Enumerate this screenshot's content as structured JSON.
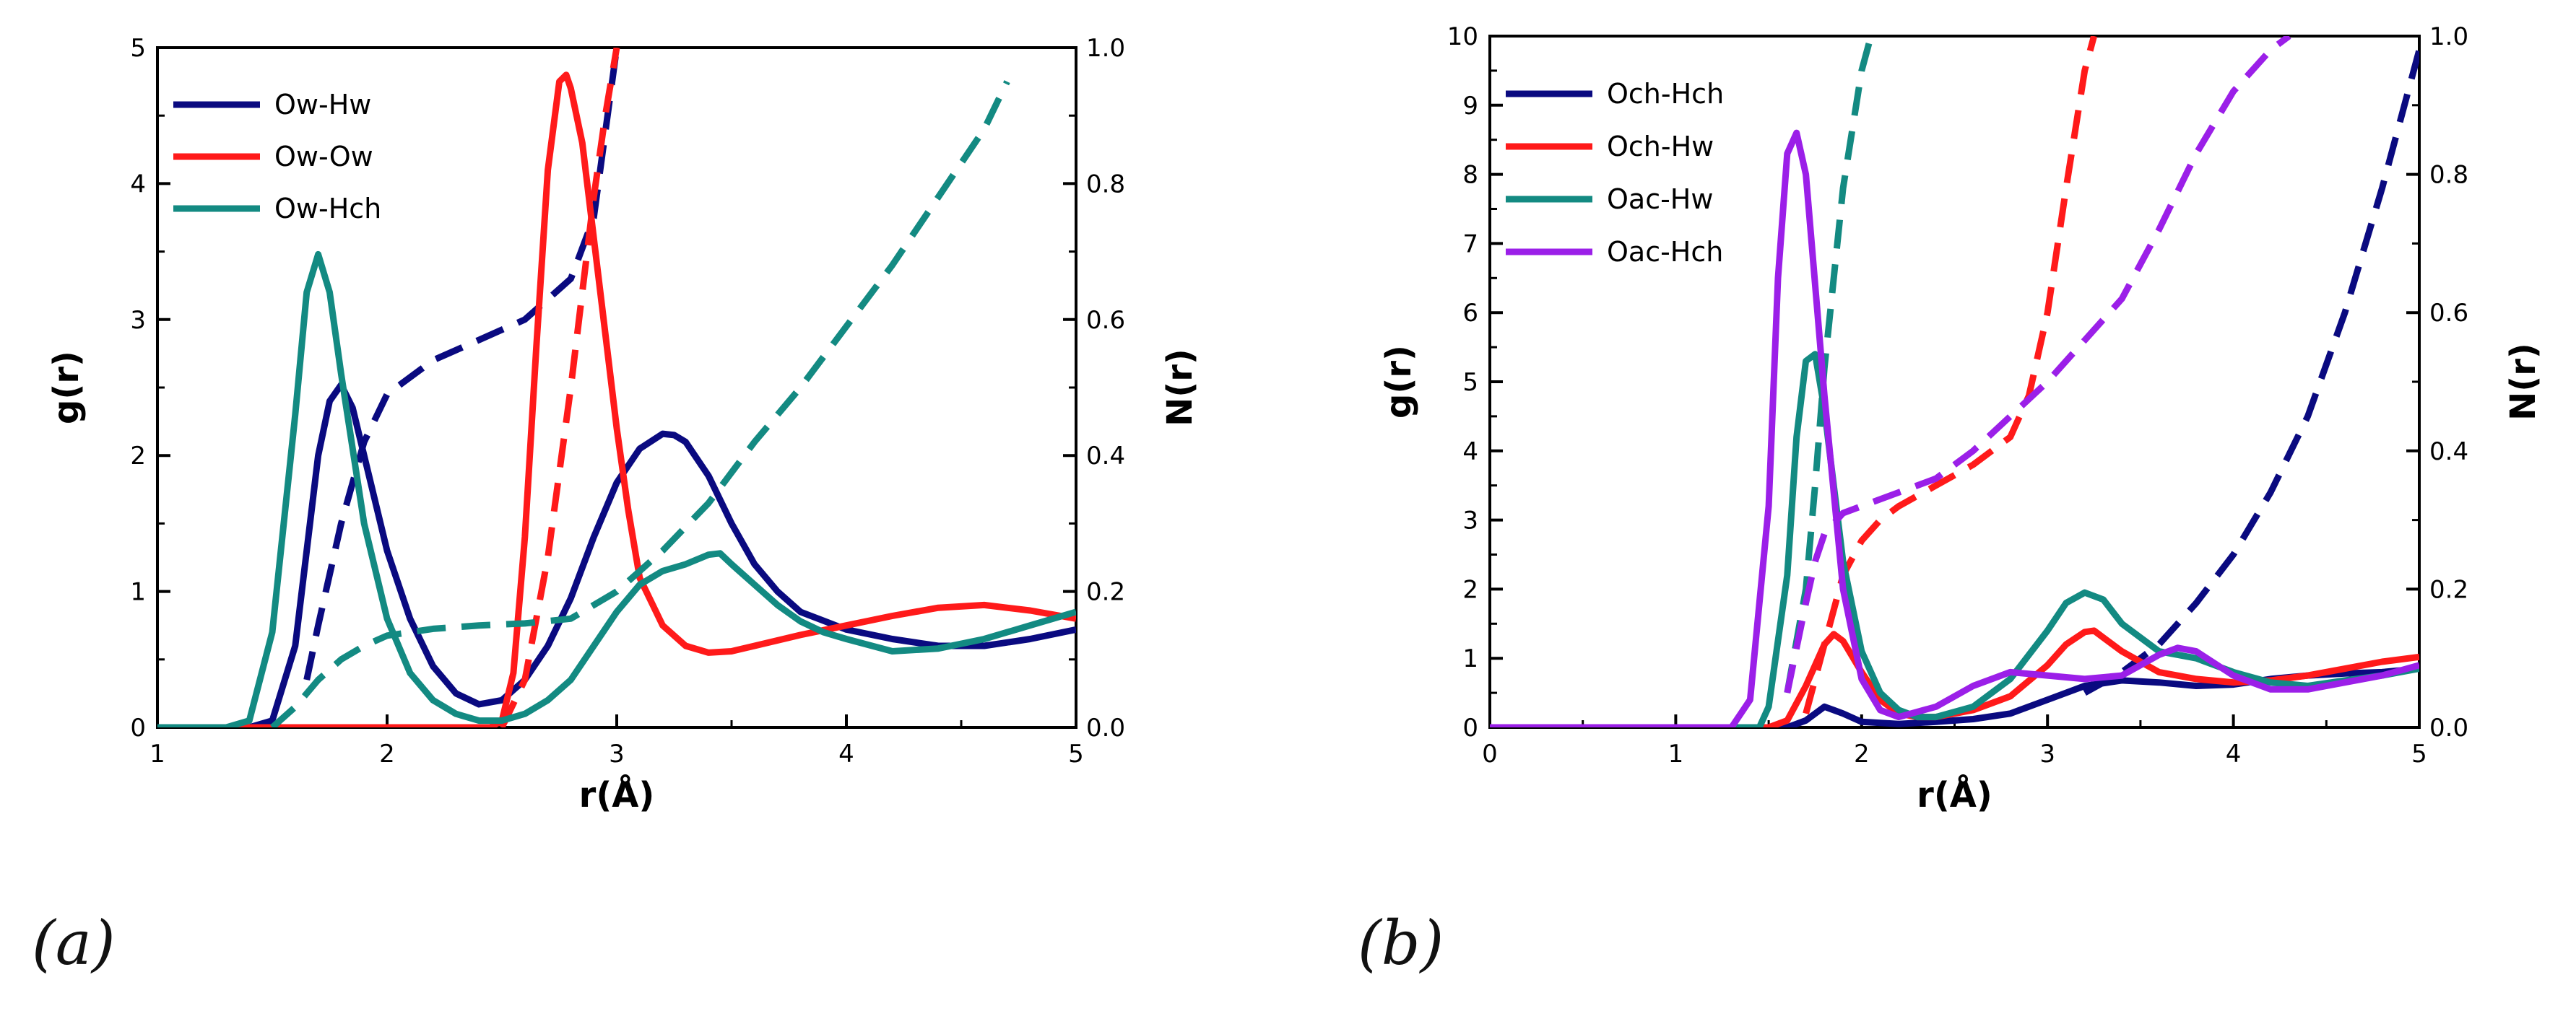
{
  "panel_labels": {
    "a": "(a)",
    "b": "(b)"
  },
  "chart_data": [
    {
      "type": "line",
      "panel": "(a)",
      "xlabel": "r(Å)",
      "ylabel": "g(r)",
      "y2label": "N(r)",
      "xlim": [
        1,
        5
      ],
      "ylim": [
        0,
        5
      ],
      "y2lim": [
        0,
        1.0
      ],
      "xticks": [
        "1",
        "2",
        "3",
        "4",
        "5"
      ],
      "yticks": [
        "0",
        "1",
        "2",
        "3",
        "4",
        "5"
      ],
      "y2ticks": [
        "0.0",
        "0.2",
        "0.4",
        "0.6",
        "0.8",
        "1.0"
      ],
      "grid": false,
      "legend_position": "top-left",
      "series": [
        {
          "name": "Ow-Hw",
          "color": "#0a0a80",
          "axis": "left",
          "style": "solid",
          "x": [
            1.0,
            1.4,
            1.5,
            1.6,
            1.65,
            1.7,
            1.75,
            1.8,
            1.85,
            1.9,
            2.0,
            2.1,
            2.2,
            2.3,
            2.4,
            2.5,
            2.6,
            2.7,
            2.8,
            2.9,
            3.0,
            3.1,
            3.2,
            3.25,
            3.3,
            3.4,
            3.5,
            3.6,
            3.7,
            3.8,
            4.0,
            4.2,
            4.4,
            4.6,
            4.8,
            5.0
          ],
          "y": [
            0,
            0,
            0.05,
            0.6,
            1.3,
            2.0,
            2.4,
            2.52,
            2.35,
            2.0,
            1.3,
            0.8,
            0.45,
            0.25,
            0.17,
            0.2,
            0.35,
            0.6,
            0.95,
            1.4,
            1.8,
            2.05,
            2.16,
            2.15,
            2.1,
            1.85,
            1.5,
            1.2,
            1.0,
            0.85,
            0.72,
            0.65,
            0.6,
            0.6,
            0.65,
            0.72
          ]
        },
        {
          "name": "",
          "color": "#0a0a80",
          "axis": "right",
          "style": "dashed",
          "x": [
            1.65,
            1.7,
            1.8,
            1.9,
            2.0,
            2.2,
            2.4,
            2.6,
            2.8,
            2.9,
            3.0
          ],
          "y": [
            0.07,
            0.15,
            0.3,
            0.42,
            0.49,
            0.54,
            0.57,
            0.6,
            0.66,
            0.75,
            1.0
          ]
        },
        {
          "name": "Ow-Ow",
          "color": "#ff1a1a",
          "axis": "left",
          "style": "solid",
          "x": [
            1.0,
            2.45,
            2.5,
            2.55,
            2.6,
            2.65,
            2.7,
            2.75,
            2.78,
            2.8,
            2.85,
            2.9,
            2.95,
            3.0,
            3.05,
            3.1,
            3.2,
            3.3,
            3.4,
            3.5,
            3.6,
            3.8,
            4.0,
            4.2,
            4.4,
            4.6,
            4.8,
            5.0
          ],
          "y": [
            0,
            0,
            0.05,
            0.4,
            1.4,
            2.8,
            4.1,
            4.75,
            4.8,
            4.7,
            4.3,
            3.6,
            2.9,
            2.2,
            1.6,
            1.1,
            0.75,
            0.6,
            0.55,
            0.56,
            0.6,
            0.68,
            0.75,
            0.82,
            0.88,
            0.9,
            0.86,
            0.8
          ]
        },
        {
          "name": "",
          "color": "#ff1a1a",
          "axis": "right",
          "style": "dashed",
          "x": [
            2.5,
            2.6,
            2.7,
            2.8,
            2.9,
            2.95,
            3.0
          ],
          "y": [
            0.0,
            0.07,
            0.25,
            0.5,
            0.78,
            0.9,
            1.0
          ]
        },
        {
          "name": "Ow-Hch",
          "color": "#138a82",
          "axis": "left",
          "style": "solid",
          "x": [
            1.0,
            1.3,
            1.4,
            1.5,
            1.6,
            1.65,
            1.7,
            1.75,
            1.8,
            1.9,
            2.0,
            2.1,
            2.2,
            2.3,
            2.4,
            2.5,
            2.6,
            2.7,
            2.8,
            2.9,
            3.0,
            3.1,
            3.2,
            3.3,
            3.4,
            3.45,
            3.5,
            3.6,
            3.7,
            3.8,
            3.9,
            4.0,
            4.2,
            4.4,
            4.6,
            4.8,
            5.0
          ],
          "y": [
            0,
            0,
            0.05,
            0.7,
            2.3,
            3.2,
            3.48,
            3.2,
            2.6,
            1.5,
            0.8,
            0.4,
            0.2,
            0.1,
            0.05,
            0.05,
            0.1,
            0.2,
            0.35,
            0.6,
            0.85,
            1.05,
            1.15,
            1.2,
            1.27,
            1.28,
            1.2,
            1.05,
            0.9,
            0.78,
            0.7,
            0.65,
            0.56,
            0.58,
            0.65,
            0.75,
            0.85
          ]
        },
        {
          "name": "",
          "color": "#138a82",
          "axis": "right",
          "style": "dashed",
          "x": [
            1.5,
            1.6,
            1.7,
            1.8,
            1.9,
            2.0,
            2.2,
            2.4,
            2.6,
            2.8,
            3.0,
            3.2,
            3.4,
            3.6,
            3.8,
            4.0,
            4.2,
            4.4,
            4.6,
            4.7
          ],
          "y": [
            0.0,
            0.03,
            0.07,
            0.1,
            0.12,
            0.135,
            0.145,
            0.15,
            0.153,
            0.16,
            0.2,
            0.26,
            0.33,
            0.42,
            0.5,
            0.59,
            0.68,
            0.78,
            0.88,
            0.95
          ]
        }
      ]
    },
    {
      "type": "line",
      "panel": "(b)",
      "xlabel": "r(Å)",
      "ylabel": "g(r)",
      "y2label": "N(r)",
      "xlim": [
        0,
        5
      ],
      "ylim": [
        0,
        10
      ],
      "y2lim": [
        0,
        1.0
      ],
      "xticks": [
        "0",
        "1",
        "2",
        "3",
        "4",
        "5"
      ],
      "yticks": [
        "0",
        "1",
        "2",
        "3",
        "4",
        "5",
        "6",
        "7",
        "8",
        "9",
        "10"
      ],
      "y2ticks": [
        "0.0",
        "0.2",
        "0.4",
        "0.6",
        "0.8",
        "1.0"
      ],
      "grid": false,
      "legend_position": "top-left",
      "series": [
        {
          "name": "Och-Hch",
          "color": "#0a0a80",
          "axis": "left",
          "style": "solid",
          "x": [
            0,
            1.6,
            1.7,
            1.8,
            1.9,
            2.0,
            2.2,
            2.4,
            2.6,
            2.8,
            3.0,
            3.2,
            3.4,
            3.6,
            3.8,
            4.0,
            4.2,
            4.4,
            4.6,
            4.8,
            5.0
          ],
          "y": [
            0,
            0,
            0.1,
            0.3,
            0.2,
            0.08,
            0.05,
            0.08,
            0.12,
            0.2,
            0.4,
            0.6,
            0.68,
            0.65,
            0.6,
            0.62,
            0.7,
            0.75,
            0.78,
            0.8,
            0.85
          ]
        },
        {
          "name": "",
          "color": "#0a0a80",
          "axis": "right",
          "style": "dashed",
          "x": [
            3.2,
            3.4,
            3.6,
            3.8,
            4.0,
            4.2,
            4.4,
            4.6,
            4.8,
            5.0
          ],
          "y": [
            0.05,
            0.08,
            0.12,
            0.18,
            0.25,
            0.34,
            0.45,
            0.6,
            0.78,
            0.98
          ]
        },
        {
          "name": "Och-Hw",
          "color": "#ff1a1a",
          "axis": "left",
          "style": "solid",
          "x": [
            0,
            1.5,
            1.6,
            1.7,
            1.8,
            1.85,
            1.9,
            2.0,
            2.1,
            2.2,
            2.3,
            2.4,
            2.6,
            2.8,
            3.0,
            3.1,
            3.2,
            3.25,
            3.3,
            3.4,
            3.6,
            3.8,
            4.0,
            4.2,
            4.4,
            4.6,
            4.8,
            5.0
          ],
          "y": [
            0,
            0,
            0.1,
            0.6,
            1.2,
            1.35,
            1.25,
            0.8,
            0.4,
            0.2,
            0.15,
            0.15,
            0.25,
            0.45,
            0.9,
            1.2,
            1.38,
            1.4,
            1.3,
            1.1,
            0.8,
            0.7,
            0.65,
            0.68,
            0.75,
            0.85,
            0.95,
            1.02
          ]
        },
        {
          "name": "",
          "color": "#ff1a1a",
          "axis": "right",
          "style": "dashed",
          "x": [
            1.7,
            1.8,
            1.9,
            2.0,
            2.1,
            2.2,
            2.4,
            2.6,
            2.8,
            2.9,
            3.0,
            3.1,
            3.2,
            3.25
          ],
          "y": [
            0.02,
            0.12,
            0.22,
            0.27,
            0.3,
            0.32,
            0.35,
            0.38,
            0.42,
            0.48,
            0.6,
            0.78,
            0.95,
            1.0
          ]
        },
        {
          "name": "Oac-Hw",
          "color": "#138a82",
          "axis": "left",
          "style": "solid",
          "x": [
            0,
            1.45,
            1.5,
            1.6,
            1.65,
            1.7,
            1.75,
            1.8,
            1.9,
            2.0,
            2.1,
            2.2,
            2.3,
            2.4,
            2.6,
            2.8,
            3.0,
            3.1,
            3.2,
            3.3,
            3.4,
            3.6,
            3.8,
            4.0,
            4.2,
            4.4,
            4.6,
            4.8,
            5.0
          ],
          "y": [
            0,
            0,
            0.3,
            2.2,
            4.2,
            5.3,
            5.4,
            4.6,
            2.4,
            1.1,
            0.5,
            0.25,
            0.15,
            0.15,
            0.3,
            0.7,
            1.4,
            1.8,
            1.95,
            1.85,
            1.5,
            1.1,
            1.0,
            0.8,
            0.65,
            0.6,
            0.68,
            0.75,
            0.85
          ]
        },
        {
          "name": "",
          "color": "#138a82",
          "axis": "right",
          "style": "dashed",
          "x": [
            1.6,
            1.7,
            1.75,
            1.8,
            1.9,
            2.0,
            2.05
          ],
          "y": [
            0.05,
            0.2,
            0.35,
            0.52,
            0.78,
            0.95,
            1.0
          ]
        },
        {
          "name": "Oac-Hch",
          "color": "#9b1fe8",
          "axis": "left",
          "style": "solid",
          "x": [
            0,
            1.3,
            1.4,
            1.5,
            1.55,
            1.6,
            1.65,
            1.7,
            1.8,
            1.9,
            2.0,
            2.1,
            2.2,
            2.4,
            2.6,
            2.8,
            3.0,
            3.2,
            3.4,
            3.6,
            3.7,
            3.8,
            4.0,
            4.2,
            4.4,
            4.6,
            4.8,
            5.0
          ],
          "y": [
            0,
            0,
            0.4,
            3.2,
            6.5,
            8.3,
            8.6,
            8.0,
            4.8,
            2.0,
            0.7,
            0.25,
            0.15,
            0.3,
            0.6,
            0.8,
            0.75,
            0.7,
            0.75,
            1.05,
            1.15,
            1.1,
            0.75,
            0.55,
            0.55,
            0.65,
            0.75,
            0.9
          ]
        },
        {
          "name": "",
          "color": "#9b1fe8",
          "axis": "right",
          "style": "dashed",
          "x": [
            1.6,
            1.7,
            1.75,
            1.8,
            1.9,
            2.0,
            2.2,
            2.4,
            2.6,
            2.8,
            3.0,
            3.2,
            3.4,
            3.6,
            3.8,
            4.0,
            4.2,
            4.3
          ],
          "y": [
            0.05,
            0.18,
            0.24,
            0.28,
            0.31,
            0.32,
            0.34,
            0.36,
            0.4,
            0.45,
            0.5,
            0.56,
            0.62,
            0.72,
            0.83,
            0.92,
            0.98,
            1.0
          ]
        }
      ]
    }
  ]
}
